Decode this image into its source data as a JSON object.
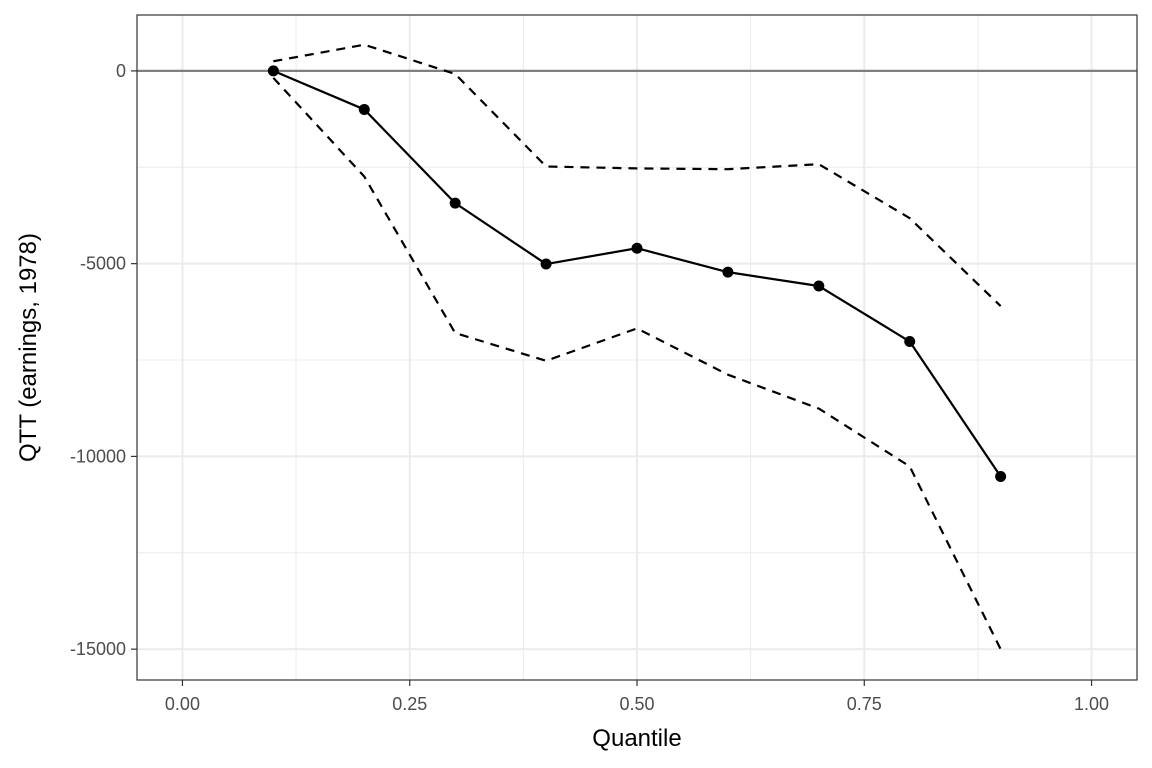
{
  "chart_data": {
    "type": "line",
    "xlabel": "Quantile",
    "ylabel": "QTT (earnings, 1978)",
    "xlim": [
      -0.05,
      1.05
    ],
    "ylim": [
      -15800,
      1450
    ],
    "x_ticks": [
      0.0,
      0.25,
      0.5,
      0.75,
      1.0
    ],
    "x_tick_labels": [
      "0.00",
      "0.25",
      "0.50",
      "0.75",
      "1.00"
    ],
    "y_ticks": [
      0,
      -5000,
      -10000,
      -15000
    ],
    "y_tick_labels": [
      "0",
      "-5000",
      "-10000",
      "-15000"
    ],
    "grid": true,
    "reference_line": {
      "y": 0,
      "color": "#7f7f7f"
    },
    "colors": {
      "series": "#000000",
      "grid": "#ebebeb",
      "panel_border": "#333333"
    },
    "series": [
      {
        "style": "solid-with-points",
        "x": [
          0.1,
          0.2,
          0.3,
          0.4,
          0.5,
          0.6,
          0.7,
          0.8,
          0.9
        ],
        "y": [
          0,
          -1000,
          -3430,
          -5010,
          -4600,
          -5220,
          -5580,
          -7020,
          -10520
        ]
      },
      {
        "style": "dashed",
        "x": [
          0.1,
          0.2,
          0.3,
          0.4,
          0.5,
          0.6,
          0.7,
          0.8,
          0.9
        ],
        "y": [
          250,
          680,
          -80,
          -2480,
          -2530,
          -2550,
          -2420,
          -3820,
          -6100
        ]
      },
      {
        "style": "dashed",
        "x": [
          0.1,
          0.2,
          0.3,
          0.4,
          0.5,
          0.6,
          0.7,
          0.8,
          0.9
        ],
        "y": [
          -180,
          -2740,
          -6800,
          -7520,
          -6680,
          -7880,
          -8760,
          -10260,
          -15000
        ]
      }
    ]
  }
}
